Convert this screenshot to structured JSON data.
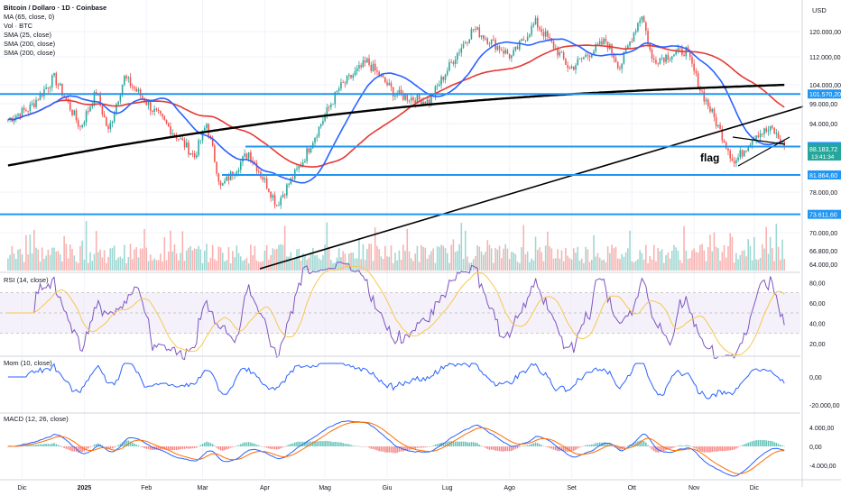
{
  "header": {
    "title": "Bitcoin / Dollaro · 1D · Coinbase",
    "currency": "USD",
    "indicators": [
      "MA (65, close, 0)",
      "Vol · BTC",
      "SMA (25, close)",
      "SMA (200, close)",
      "SMA (200, close)"
    ]
  },
  "panes": {
    "rsi_title": "RSI (14, close)",
    "mom_title": "Mom (10, close)",
    "macd_title": "MACD (12, 26, close)"
  },
  "annotation": {
    "text": "flag"
  },
  "colors": {
    "up": "#26a69a",
    "down": "#ef5350",
    "sma25": "#2962ff",
    "ma65": "#e53935",
    "sma200": "#000000",
    "level": "#2196f3",
    "rsi": "#7e57c2",
    "rsi_ma": "#f9c74f",
    "mom": "#2962ff",
    "macd": "#2962ff",
    "signal": "#ff6d00"
  },
  "chart_data": {
    "type": "candlestick",
    "symbol": "Bitcoin / Dollaro",
    "timeframe": "1D",
    "exchange": "Coinbase",
    "x_tick_labels": [
      "Dic",
      "2025",
      "Feb",
      "Mar",
      "Apr",
      "Mag",
      "Giu",
      "Lug",
      "Ago",
      "Set",
      "Ott",
      "Nov",
      "Dic"
    ],
    "y_tick_labels": [
      "120.000,00",
      "112.000,00",
      "104.000,00",
      "99.000,00",
      "94.000,00",
      "88.183,72",
      "78.000,00",
      "70.000,00",
      "66.800,00",
      "64.000,00"
    ],
    "price_points": [
      {
        "date": "2024-11-24",
        "close": 95000
      },
      {
        "date": "2024-12-05",
        "close": 98000
      },
      {
        "date": "2024-12-17",
        "close": 106000
      },
      {
        "date": "2024-12-30",
        "close": 93000
      },
      {
        "date": "2025-01-07",
        "close": 102000
      },
      {
        "date": "2025-01-13",
        "close": 92000
      },
      {
        "date": "2025-01-21",
        "close": 106000
      },
      {
        "date": "2025-02-05",
        "close": 97000
      },
      {
        "date": "2025-02-25",
        "close": 86000
      },
      {
        "date": "2025-03-03",
        "close": 94000
      },
      {
        "date": "2025-03-10",
        "close": 79000
      },
      {
        "date": "2025-03-24",
        "close": 87000
      },
      {
        "date": "2025-04-07",
        "close": 75500
      },
      {
        "date": "2025-04-20",
        "close": 85000
      },
      {
        "date": "2025-05-08",
        "close": 103000
      },
      {
        "date": "2025-05-22",
        "close": 110500
      },
      {
        "date": "2025-06-05",
        "close": 101500
      },
      {
        "date": "2025-06-22",
        "close": 99500
      },
      {
        "date": "2025-07-14",
        "close": 121000
      },
      {
        "date": "2025-08-02",
        "close": 112000
      },
      {
        "date": "2025-08-14",
        "close": 123000
      },
      {
        "date": "2025-08-31",
        "close": 108500
      },
      {
        "date": "2025-09-18",
        "close": 117000
      },
      {
        "date": "2025-09-25",
        "close": 109000
      },
      {
        "date": "2025-10-06",
        "close": 126000
      },
      {
        "date": "2025-10-11",
        "close": 111000
      },
      {
        "date": "2025-10-28",
        "close": 114000
      },
      {
        "date": "2025-11-04",
        "close": 103000
      },
      {
        "date": "2025-11-21",
        "close": 84500
      },
      {
        "date": "2025-12-02",
        "close": 91500
      },
      {
        "date": "2025-12-10",
        "close": 92500
      },
      {
        "date": "2025-12-16",
        "close": 88183.72
      }
    ],
    "horizontal_levels": [
      {
        "label": "101.570,20",
        "value": 101570.2
      },
      {
        "label": "88.304,10",
        "value": 88304.1
      },
      {
        "label": "81.864,60",
        "value": 81864.6
      },
      {
        "label": "73.611,60",
        "value": 73611.6
      }
    ],
    "last_price": {
      "label": "88.183,72",
      "countdown": "13:41:34"
    },
    "rsi": {
      "title": "RSI (14, close)",
      "ticks": [
        "80,00",
        "60,00",
        "40,00",
        "20,00"
      ],
      "last": 40
    },
    "momentum": {
      "title": "Mom (10, close)",
      "ticks": [
        "0,00",
        "-20.000,00"
      ]
    },
    "macd": {
      "title": "MACD (12, 26, close)",
      "ticks": [
        "4.000,00",
        "0,00",
        "-4.000,00"
      ]
    }
  }
}
